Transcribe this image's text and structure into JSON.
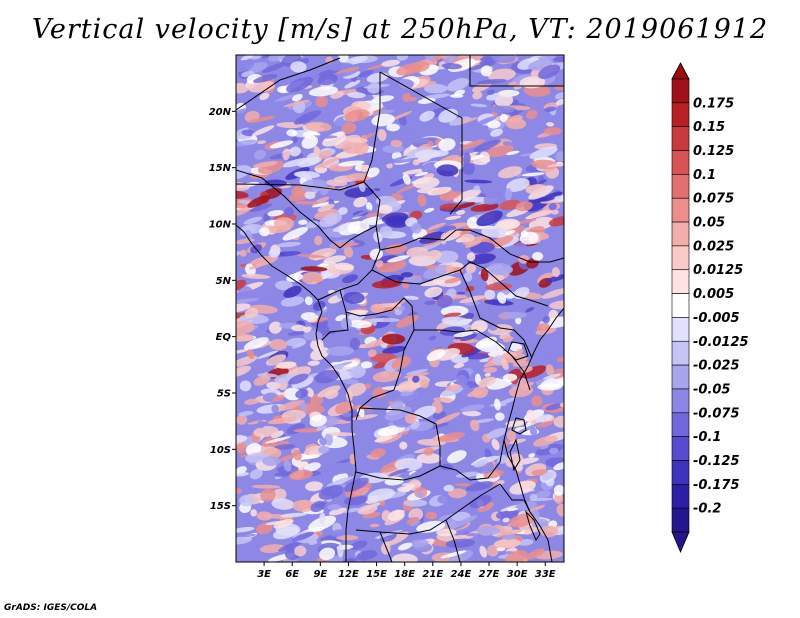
{
  "title": "Vertical velocity [m/s] at 250hPa, VT: 2019061912",
  "credit": "GrADS: IGES/COLA",
  "map": {
    "lon_range": [
      0,
      35
    ],
    "lat_range": [
      -20,
      25
    ],
    "lat_labels": [
      {
        "lat": 20,
        "label": "20N"
      },
      {
        "lat": 15,
        "label": "15N"
      },
      {
        "lat": 10,
        "label": "10N"
      },
      {
        "lat": 5,
        "label": "5N"
      },
      {
        "lat": 0,
        "label": "EQ"
      },
      {
        "lat": -5,
        "label": "5S"
      },
      {
        "lat": -10,
        "label": "10S"
      },
      {
        "lat": -15,
        "label": "15S"
      }
    ],
    "lon_labels": [
      {
        "lon": 3,
        "label": "3E"
      },
      {
        "lon": 6,
        "label": "6E"
      },
      {
        "lon": 9,
        "label": "9E"
      },
      {
        "lon": 12,
        "label": "12E"
      },
      {
        "lon": 15,
        "label": "15E"
      },
      {
        "lon": 18,
        "label": "18E"
      },
      {
        "lon": 21,
        "label": "21E"
      },
      {
        "lon": 24,
        "label": "24E"
      },
      {
        "lon": 27,
        "label": "27E"
      },
      {
        "lon": 30,
        "label": "30E"
      },
      {
        "lon": 33,
        "label": "33E"
      }
    ]
  },
  "colorbar": {
    "levels": [
      {
        "label": "0.175",
        "color": "#a01018"
      },
      {
        "label": "0.15",
        "color": "#b82026"
      },
      {
        "label": "0.125",
        "color": "#c93a3c"
      },
      {
        "label": "0.1",
        "color": "#d85454"
      },
      {
        "label": "0.075",
        "color": "#e27070"
      },
      {
        "label": "0.05",
        "color": "#eb8e8c"
      },
      {
        "label": "0.025",
        "color": "#f3aeab"
      },
      {
        "label": "0.0125",
        "color": "#f8cac8"
      },
      {
        "label": "0.005",
        "color": "#fde4e2"
      },
      {
        "label": "-0.005",
        "color": "#ffffff"
      },
      {
        "label": "-0.0125",
        "color": "#e2e1fb"
      },
      {
        "label": "-0.025",
        "color": "#c6c4f5"
      },
      {
        "label": "-0.05",
        "color": "#a8a5ee"
      },
      {
        "label": "-0.075",
        "color": "#8c87e6"
      },
      {
        "label": "-0.1",
        "color": "#7168dc"
      },
      {
        "label": "-0.125",
        "color": "#574ccf"
      },
      {
        "label": "-0.175",
        "color": "#3e33bd"
      },
      {
        "label": "-0.2",
        "color": "#2c1fa6"
      }
    ],
    "top_color": "#9a0c12",
    "bottom_color": "#24168f"
  }
}
